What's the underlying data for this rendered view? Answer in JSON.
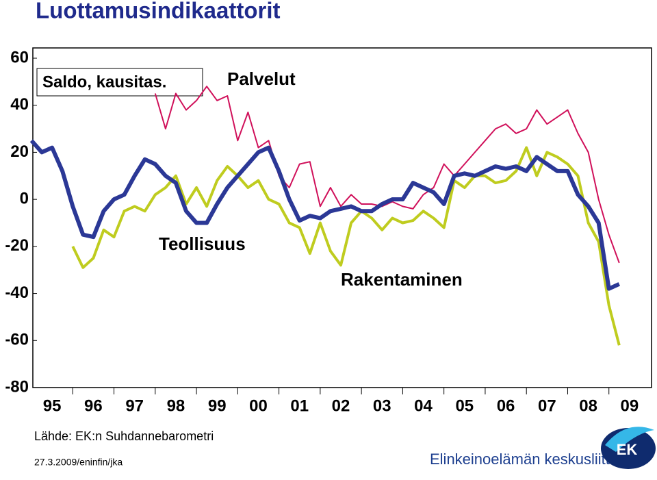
{
  "chart_data": {
    "type": "line",
    "title": "Luottamusindikaattorit",
    "subtitle": "Saldo, kausitas.",
    "source": "Lähde: EK:n Suhdannebarometri",
    "footer": "27.3.2009/eninfin/jka",
    "logo_text": "Elinkeinoelämän keskusliitto",
    "logo_mark": "EK",
    "x": [
      1995,
      1995.25,
      1995.5,
      1995.75,
      1996,
      1996.25,
      1996.5,
      1996.75,
      1997,
      1997.25,
      1997.5,
      1997.75,
      1998,
      1998.25,
      1998.5,
      1998.75,
      1999,
      1999.25,
      1999.5,
      1999.75,
      2000,
      2000.25,
      2000.5,
      2000.75,
      2001,
      2001.25,
      2001.5,
      2001.75,
      2002,
      2002.25,
      2002.5,
      2002.75,
      2003,
      2003.25,
      2003.5,
      2003.75,
      2004,
      2004.25,
      2004.5,
      2004.75,
      2005,
      2005.25,
      2005.5,
      2005.75,
      2006,
      2006.25,
      2006.5,
      2006.75,
      2007,
      2007.25,
      2007.5,
      2007.75,
      2008,
      2008.25,
      2008.5,
      2008.75,
      2009,
      2009.25
    ],
    "xlim": [
      1995,
      2010
    ],
    "xticks": [
      {
        "value": 1995.5,
        "label": "95"
      },
      {
        "value": 1996.5,
        "label": "96"
      },
      {
        "value": 1997.5,
        "label": "97"
      },
      {
        "value": 1998.5,
        "label": "98"
      },
      {
        "value": 1999.5,
        "label": "99"
      },
      {
        "value": 2000.5,
        "label": "00"
      },
      {
        "value": 2001.5,
        "label": "01"
      },
      {
        "value": 2002.5,
        "label": "02"
      },
      {
        "value": 2003.5,
        "label": "03"
      },
      {
        "value": 2004.5,
        "label": "04"
      },
      {
        "value": 2005.5,
        "label": "05"
      },
      {
        "value": 2006.5,
        "label": "06"
      },
      {
        "value": 2007.5,
        "label": "07"
      },
      {
        "value": 2008.5,
        "label": "08"
      },
      {
        "value": 2009.5,
        "label": "09"
      }
    ],
    "ylim": [
      -80,
      60
    ],
    "yticks": [
      -80,
      -60,
      -40,
      -20,
      0,
      20,
      40,
      60
    ],
    "grid": false,
    "series": [
      {
        "name": "Teollisuus",
        "color": "#2b3896",
        "width": 6,
        "values": [
          25,
          20,
          22,
          12,
          -3,
          -15,
          -16,
          -5,
          0,
          2,
          10,
          17,
          15,
          10,
          7,
          -5,
          -10,
          -10,
          -2,
          5,
          10,
          15,
          20,
          22,
          12,
          0,
          -9,
          -7,
          -8,
          -5,
          -4,
          -3,
          -5,
          -5,
          -2,
          0,
          0,
          7,
          5,
          3,
          -2,
          10,
          11,
          10,
          12,
          14,
          13,
          14,
          12,
          18,
          15,
          12,
          12,
          2,
          -3,
          -10,
          -38,
          -36
        ]
      },
      {
        "name": "Rakentaminen",
        "color": "#bfcc1f",
        "width": 4,
        "values": [
          null,
          null,
          null,
          null,
          -20,
          -29,
          -25,
          -13,
          -16,
          -5,
          -3,
          -5,
          2,
          5,
          10,
          -2,
          5,
          -3,
          8,
          14,
          10,
          5,
          8,
          0,
          -2,
          -10,
          -12,
          -23,
          -10,
          -22,
          -28,
          -10,
          -5,
          -8,
          -13,
          -8,
          -10,
          -9,
          -5,
          -8,
          -12,
          8,
          5,
          10,
          10,
          7,
          8,
          12,
          22,
          10,
          20,
          18,
          15,
          10,
          -10,
          -18,
          -45,
          -62
        ]
      },
      {
        "name": "Palvelut",
        "color": "#d0105a",
        "width": 2,
        "values": [
          null,
          null,
          null,
          null,
          null,
          null,
          null,
          null,
          null,
          null,
          null,
          null,
          45,
          30,
          45,
          38,
          42,
          48,
          42,
          44,
          25,
          37,
          22,
          25,
          10,
          5,
          15,
          16,
          -3,
          5,
          -3,
          2,
          -2,
          -2,
          -3,
          -1,
          -3,
          -4,
          2,
          5,
          15,
          10,
          15,
          20,
          25,
          30,
          32,
          28,
          30,
          38,
          32,
          35,
          38,
          28,
          20,
          0,
          -15,
          -27
        ]
      }
    ]
  }
}
